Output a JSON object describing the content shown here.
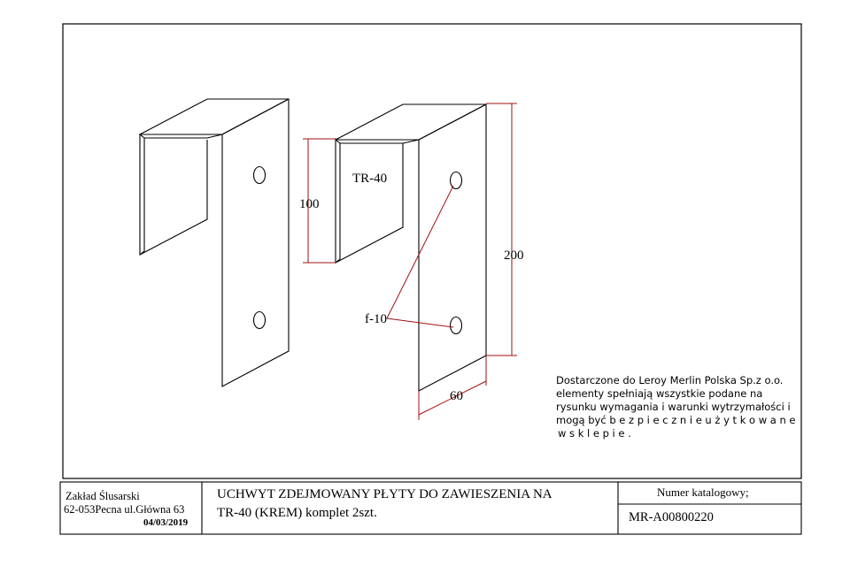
{
  "drawing": {
    "part_label": "TR-40",
    "dim_height_inner": "100",
    "dim_height_outer": "200",
    "dim_width": "60",
    "hole_label": "f-10",
    "note": {
      "line1": "Dostarczone do Leroy Merlin Polska Sp.z o.o.",
      "line2": "elementy spełniają wszystkie podane na",
      "line3": "rysunku wymagania i warunki wytrzymałości i",
      "line4": "mogą być b e z p i e c z n i e  u ż y t k o w a n e",
      "line5": "w  s k l e p i e ."
    }
  },
  "title_block": {
    "company_name": "Zakład Ślusarski",
    "company_address": "62-053Pecna ul.Główna 63",
    "date": "04/03/2019",
    "title_line1": "UCHWYT ZDEJMOWANY PŁYTY DO ZAWIESZENIA NA",
    "title_line2": "TR-40 (KREM) komplet 2szt.",
    "catalog_label": "Numer katalogowy;",
    "catalog_number": "MR-A00800220"
  }
}
